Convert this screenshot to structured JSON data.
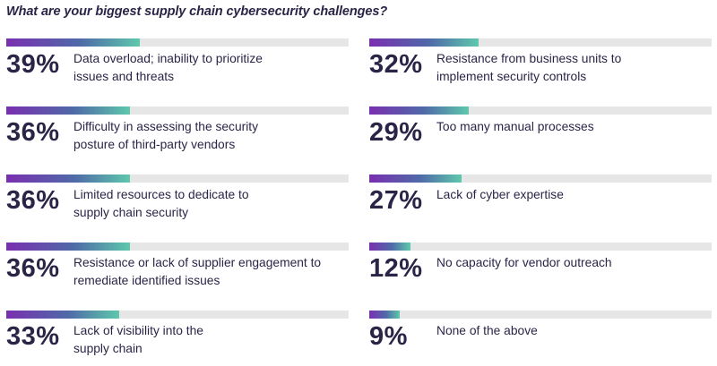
{
  "chart_data": {
    "type": "bar",
    "title": "What are your biggest supply chain cybersecurity challenges?",
    "xlim": [
      0,
      100
    ],
    "colors": {
      "gradient_start": "#7a2fb0",
      "gradient_mid": "#4f6aa8",
      "gradient_end": "#5ec8ac",
      "track": "#e6e6e6",
      "text": "#2a2547"
    },
    "series": [
      {
        "values": [
          39,
          36,
          36,
          36,
          33,
          32,
          29,
          27,
          12,
          9
        ]
      }
    ],
    "categories": [
      "Data overload; inability to prioritize issues and threats",
      "Difficulty in assessing the security posture of third-party vendors",
      "Limited resources to dedicate to supply chain security",
      "Resistance or lack of supplier engagement to remediate identified issues",
      "Lack of visibility into the supply chain",
      "Resistance from business units to implement security controls",
      "Too many manual processes",
      "Lack of cyber expertise",
      "No capacity for vendor outreach",
      "None of the above"
    ],
    "display": [
      {
        "pct": "39%",
        "lines": [
          "Data overload; inability to prioritize",
          "issues and threats"
        ]
      },
      {
        "pct": "36%",
        "lines": [
          "Difficulty in assessing the security",
          "posture of third-party vendors"
        ]
      },
      {
        "pct": "36%",
        "lines": [
          "Limited resources to dedicate to",
          "supply chain security"
        ]
      },
      {
        "pct": "36%",
        "lines": [
          "Resistance or lack of supplier engagement to",
          "remediate identified issues"
        ]
      },
      {
        "pct": "33%",
        "lines": [
          "Lack of visibility into the",
          "supply chain"
        ]
      },
      {
        "pct": "32%",
        "lines": [
          "Resistance from business units to",
          "implement security controls"
        ]
      },
      {
        "pct": "29%",
        "lines": [
          "Too many manual processes"
        ]
      },
      {
        "pct": "27%",
        "lines": [
          "Lack of cyber expertise"
        ]
      },
      {
        "pct": "12%",
        "lines": [
          "No capacity for vendor outreach"
        ]
      },
      {
        "pct": "9%",
        "lines": [
          "None of the above"
        ]
      }
    ]
  }
}
